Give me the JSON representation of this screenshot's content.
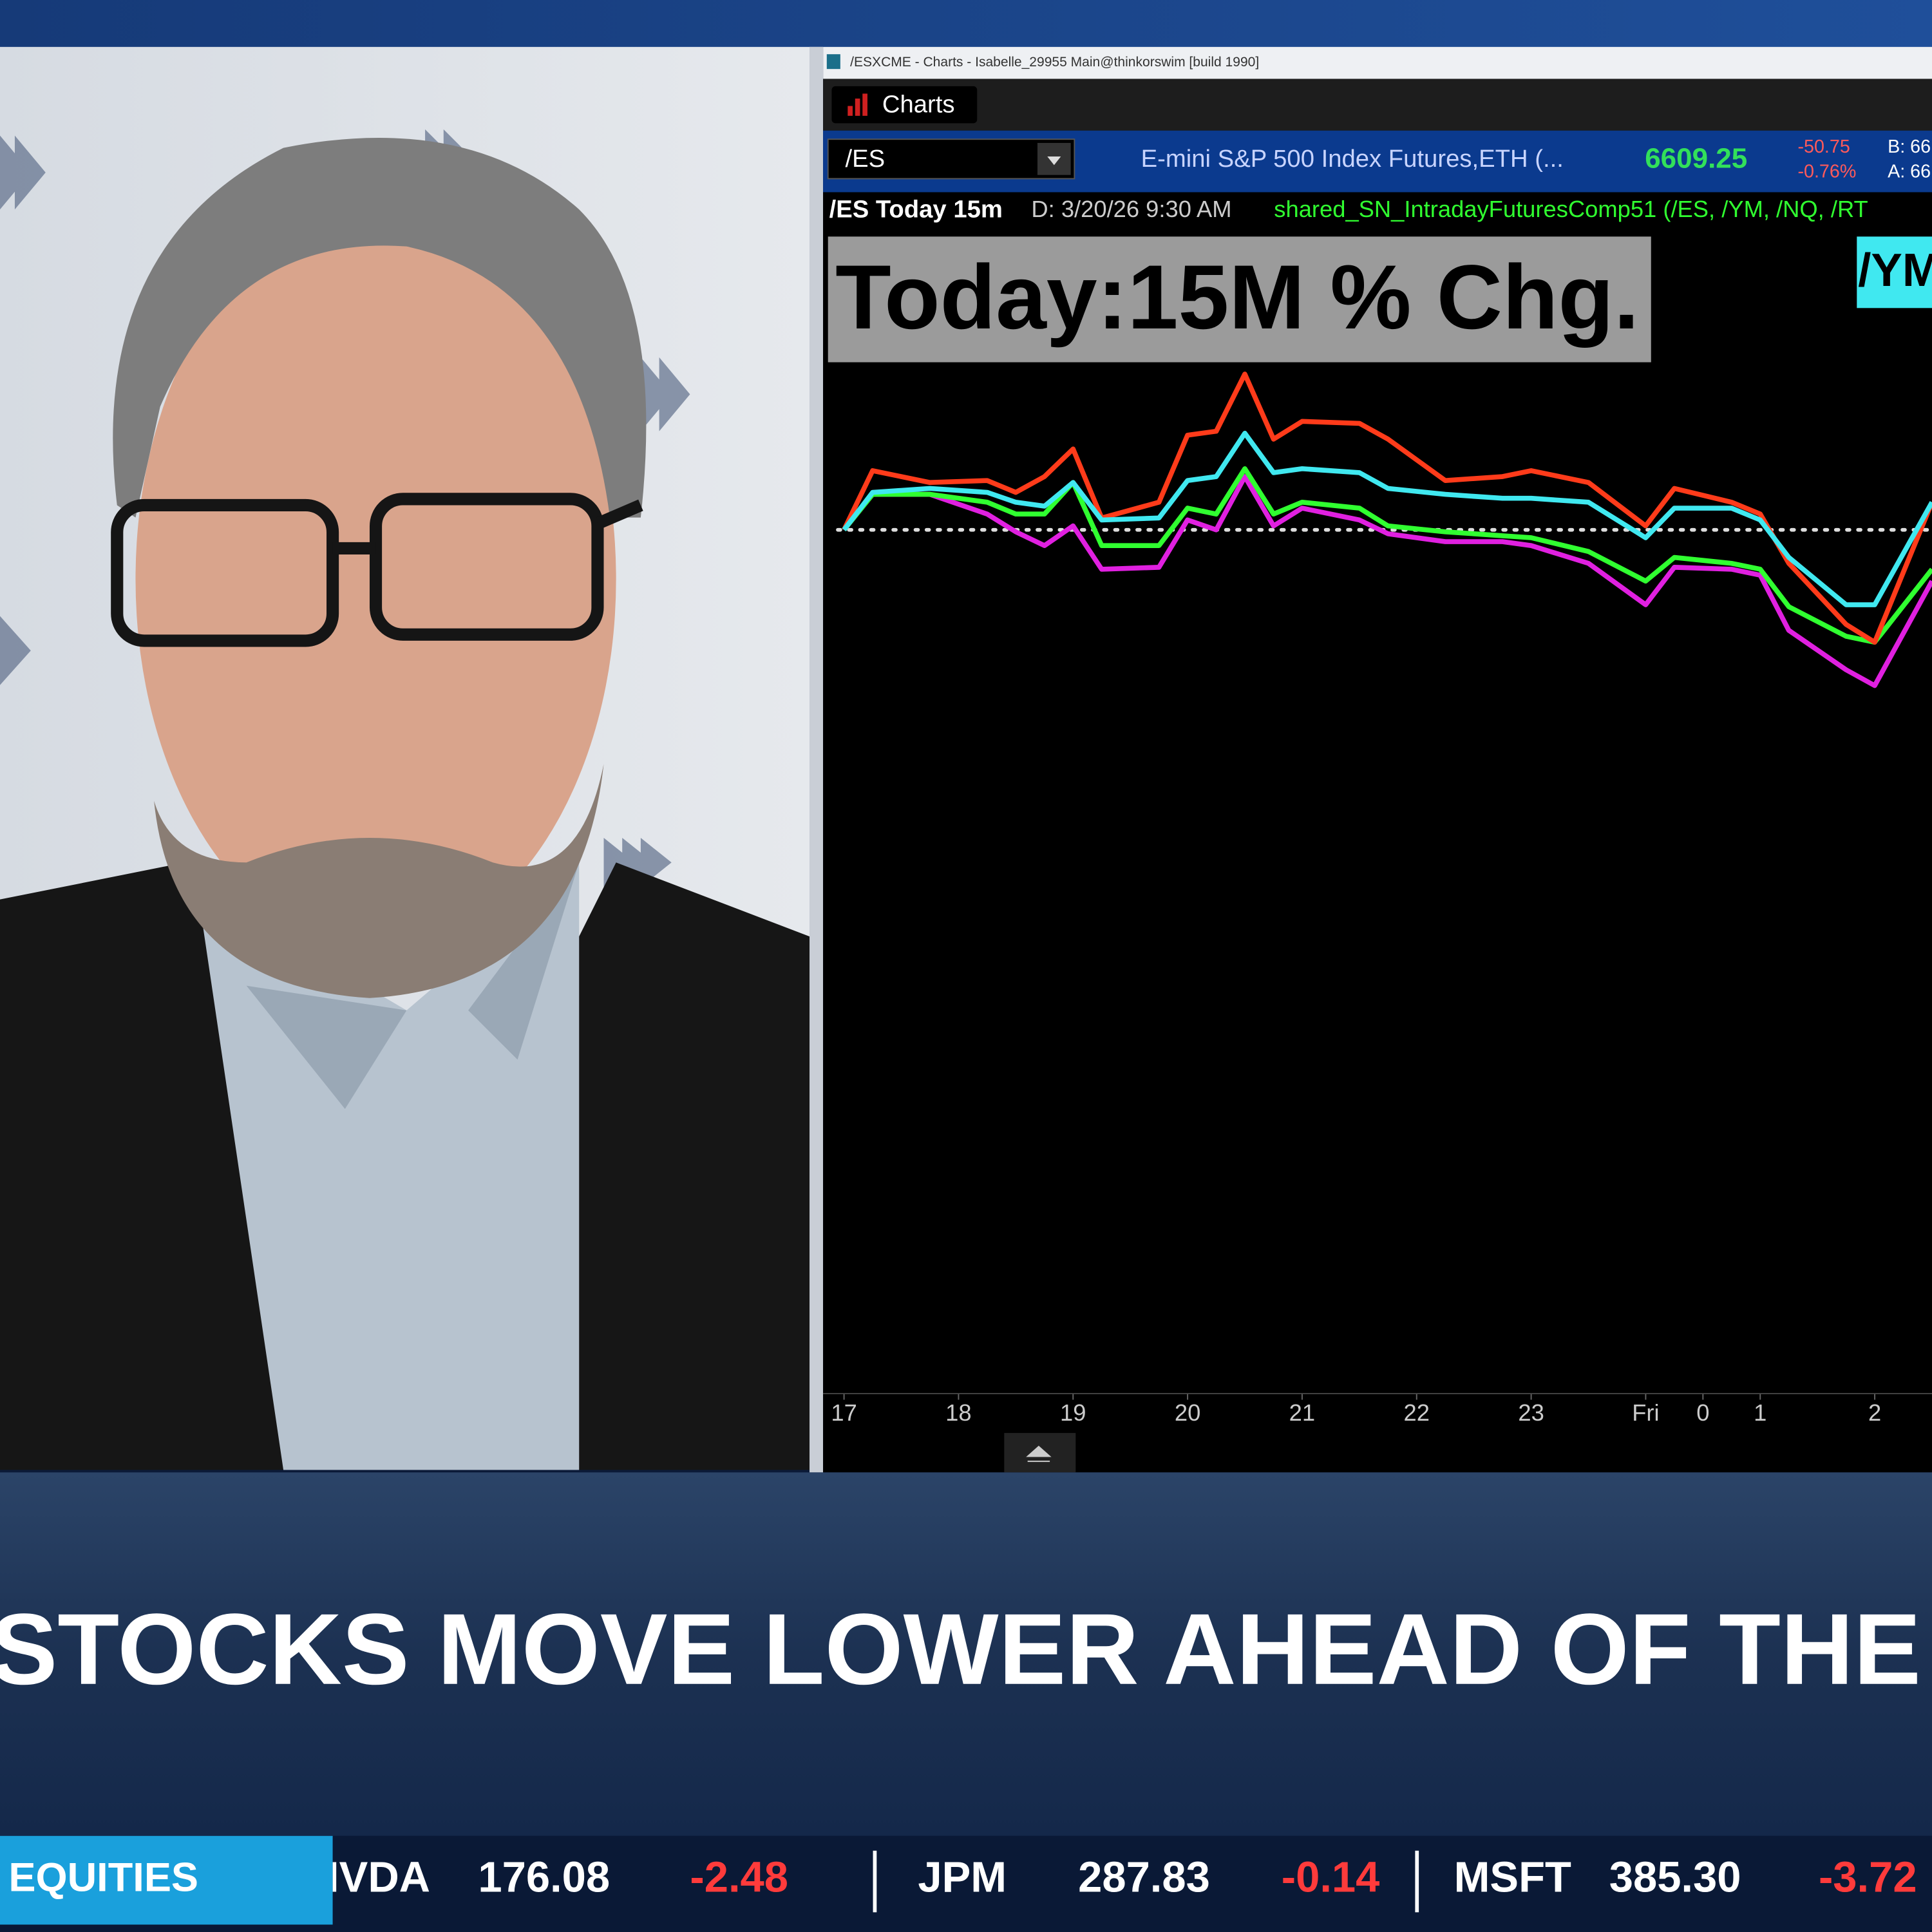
{
  "window": {
    "title": "/ESXCME - Charts - Isabelle_29955 Main@thinkorswim [build 1990]",
    "tab": "Charts",
    "symbol": "/ES",
    "description": "E-mini S&P 500 Index Futures,ETH (...",
    "last": "6609.25",
    "net_change": "-50.75",
    "pct_change": "-0.76%",
    "bid": "B: 66",
    "ask": "A: 66"
  },
  "chart_header": {
    "symbol_period": "/ES Today 15m",
    "date": "D: 3/20/26 9:30 AM",
    "study": "shared_SN_IntradayFuturesComp51 (/ES, /YM, /NQ, /RT"
  },
  "chart_data": {
    "type": "line",
    "title": "Today:15M % Chg.",
    "x": [
      0,
      1,
      3,
      5,
      6,
      7,
      8,
      9,
      11,
      12,
      13,
      14,
      15,
      16,
      18,
      19,
      21,
      23,
      24,
      26,
      28,
      29,
      31,
      32,
      33,
      35,
      36,
      38
    ],
    "series": [
      {
        "color": "#e020e0",
        "values": [
          0,
          0.18,
          0.18,
          0.08,
          -0.01,
          -0.08,
          0.02,
          -0.2,
          -0.19,
          0.05,
          0,
          0.27,
          0.02,
          0.11,
          0.05,
          -0.02,
          -0.06,
          -0.06,
          -0.08,
          -0.17,
          -0.38,
          -0.19,
          -0.2,
          -0.23,
          -0.51,
          -0.71,
          -0.79,
          -0.26
        ]
      },
      {
        "color": "#30ff30",
        "values": [
          0,
          0.18,
          0.18,
          0.14,
          0.08,
          0.08,
          0.24,
          -0.08,
          -0.08,
          0.11,
          0.08,
          0.31,
          0.08,
          0.14,
          0.11,
          0.02,
          -0.01,
          -0.03,
          -0.04,
          -0.11,
          -0.26,
          -0.14,
          -0.17,
          -0.2,
          -0.39,
          -0.54,
          -0.57,
          -0.2
        ]
      },
      {
        "color": "#ff3b1a",
        "values": [
          0,
          0.3,
          0.24,
          0.25,
          0.19,
          0.27,
          0.41,
          0.06,
          0.14,
          0.48,
          0.5,
          0.79,
          0.46,
          0.55,
          0.54,
          0.46,
          0.25,
          0.27,
          0.3,
          0.24,
          0.02,
          0.21,
          0.14,
          0.08,
          -0.17,
          -0.48,
          -0.57,
          0.14
        ]
      },
      {
        "name": "/YM",
        "color": "#40e8f0",
        "values": [
          0,
          0.19,
          0.21,
          0.19,
          0.14,
          0.12,
          0.24,
          0.05,
          0.06,
          0.25,
          0.27,
          0.49,
          0.29,
          0.31,
          0.29,
          0.21,
          0.18,
          0.16,
          0.16,
          0.14,
          -0.04,
          0.11,
          0.11,
          0.05,
          -0.14,
          -0.38,
          -0.38,
          0.14
        ]
      }
    ],
    "xlim": [
      0,
      38
    ],
    "ylim": [
      -4.4,
      1.5
    ],
    "xticks": [
      {
        "value": 0,
        "label": "17"
      },
      {
        "value": 4,
        "label": "18"
      },
      {
        "value": 8,
        "label": "19"
      },
      {
        "value": 12,
        "label": "20"
      },
      {
        "value": 16,
        "label": "21"
      },
      {
        "value": 20,
        "label": "22"
      },
      {
        "value": 24,
        "label": "23"
      },
      {
        "value": 28,
        "label": "Fri"
      },
      {
        "value": 30,
        "label": "0"
      },
      {
        "value": 32,
        "label": "1"
      },
      {
        "value": 36,
        "label": "2"
      }
    ],
    "reference_line": 0,
    "background": "#000000"
  },
  "headline": "STOCKS MOVE LOWER AHEAD OF THE",
  "ticker": {
    "label": "EQUITIES",
    "items": [
      {
        "symbol": "NVDA",
        "price": "176.08",
        "change": "-2.48"
      },
      {
        "symbol": "JPM",
        "price": "287.83",
        "change": "-0.14"
      },
      {
        "symbol": "MSFT",
        "price": "385.30",
        "change": "-3.72"
      }
    ]
  }
}
